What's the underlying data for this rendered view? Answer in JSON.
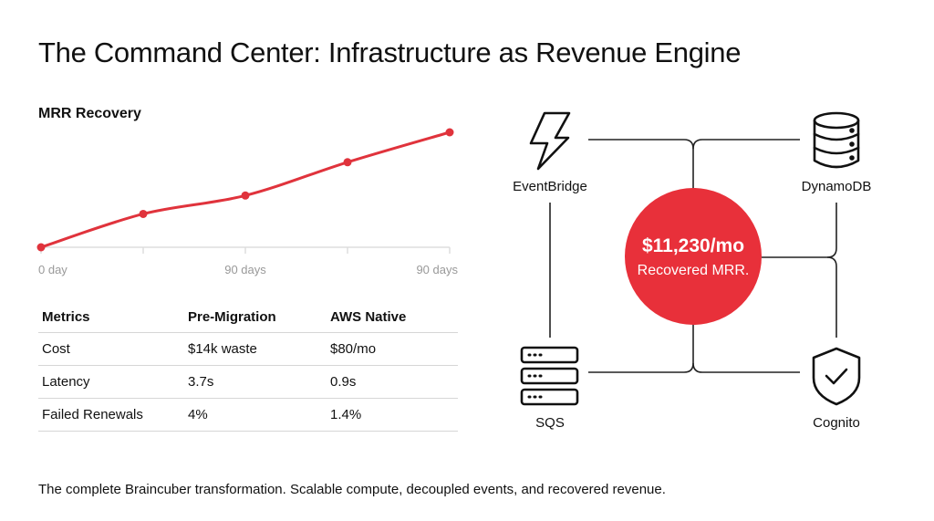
{
  "title": "The Command Center: Infrastructure as Revenue Engine",
  "chart_data": {
    "type": "line",
    "title": "MRR Recovery",
    "x_ticks": [
      "0 day",
      "",
      "90 days",
      "",
      "90 days"
    ],
    "values": [
      0,
      0.29,
      0.45,
      0.74,
      1.0
    ],
    "ylim": [
      0,
      1.0
    ],
    "y_axis_shown": false,
    "grid": false,
    "color": "#e0333c"
  },
  "table": {
    "headers": [
      "Metrics",
      "Pre-Migration",
      "AWS Native"
    ],
    "rows": [
      [
        "Cost",
        "$14k waste",
        "$80/mo"
      ],
      [
        "Latency",
        "3.7s",
        "0.9s"
      ],
      [
        "Failed Renewals",
        "4%",
        "1.4%"
      ]
    ]
  },
  "diagram": {
    "center": {
      "value": "$11,230/mo",
      "label": "Recovered MRR.",
      "color": "#e8303a"
    },
    "nodes": [
      {
        "label": "EventBridge",
        "icon": "lightning-icon"
      },
      {
        "label": "DynamoDB",
        "icon": "database-icon"
      },
      {
        "label": "SQS",
        "icon": "server-stack-icon"
      },
      {
        "label": "Cognito",
        "icon": "shield-check-icon"
      }
    ]
  },
  "footer": "The complete Braincuber transformation. Scalable compute, decoupled events, and recovered revenue."
}
